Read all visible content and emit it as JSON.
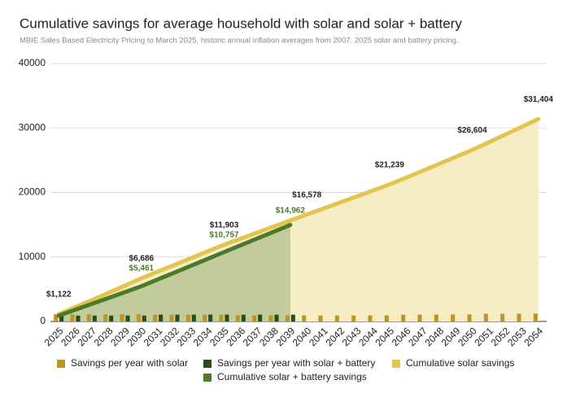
{
  "chart_data": {
    "type": "combo",
    "title": "Cumulative savings for average household with solar and solar + battery",
    "subtitle": "MBIE Sales Based Electricity Pricing to March 2025, historic annual inflation averages from 2007. 2025 solar and battery pricing.",
    "categories": [
      "2025",
      "2026",
      "2027",
      "2028",
      "2029",
      "2030",
      "2031",
      "2032",
      "2033",
      "2034",
      "2035",
      "2036",
      "2037",
      "2038",
      "2039",
      "2040",
      "2041",
      "2042",
      "2043",
      "2044",
      "2045",
      "2046",
      "2047",
      "2048",
      "2049",
      "2050",
      "2051",
      "2052",
      "2053",
      "2054"
    ],
    "ylim": [
      0,
      40000
    ],
    "yticks": [
      0,
      10000,
      20000,
      30000,
      40000
    ],
    "series": [
      {
        "name": "Savings per year with solar",
        "kind": "bar",
        "color": "#b8962b",
        "values": [
          1122,
          1090,
          1100,
          1112,
          1125,
          1137,
          1050,
          1045,
          1040,
          1040,
          1042,
          940,
          935,
          935,
          930,
          935,
          925,
          930,
          932,
          935,
          939,
          1050,
          1065,
          1073,
          1082,
          1095,
          1180,
          1195,
          1205,
          1220
        ]
      },
      {
        "name": "Savings per year with solar + battery",
        "kind": "bar",
        "color": "#2d4a1a",
        "values": [
          900,
          910,
          910,
          910,
          915,
          916,
          1055,
          1057,
          1059,
          1061,
          1064,
          1050,
          1051,
          1052,
          1052,
          null,
          null,
          null,
          null,
          null,
          null,
          null,
          null,
          null,
          null,
          null,
          null,
          null,
          null,
          null
        ]
      },
      {
        "name": "Cumulative solar savings",
        "kind": "area",
        "color": "#e3c44e",
        "fill": "#f6edc4",
        "values": [
          1122,
          2212,
          3312,
          4424,
          5549,
          6686,
          7736,
          8781,
          9821,
          10861,
          11903,
          12843,
          13778,
          14713,
          15643,
          16578,
          17503,
          18433,
          19365,
          20300,
          21239,
          22289,
          23354,
          24427,
          25509,
          26604,
          27784,
          28979,
          30184,
          31404
        ],
        "value_labels": [
          "$1,122",
          null,
          null,
          null,
          null,
          "$6,686",
          null,
          null,
          null,
          null,
          "$11,903",
          null,
          null,
          null,
          null,
          "$16,578",
          null,
          null,
          null,
          null,
          "$21,239",
          null,
          null,
          null,
          null,
          "$26,604",
          null,
          null,
          null,
          "$31,404"
        ]
      },
      {
        "name": "Cumulative solar + battery savings",
        "kind": "area",
        "color": "#4a7a28",
        "fill": "#c1cb9b",
        "values": [
          900,
          1810,
          2720,
          3630,
          4545,
          5461,
          6516,
          7573,
          8632,
          9693,
          10757,
          11807,
          12858,
          13910,
          14962,
          null,
          null,
          null,
          null,
          null,
          null,
          null,
          null,
          null,
          null,
          null,
          null,
          null,
          null,
          null
        ],
        "value_labels": [
          null,
          null,
          null,
          null,
          null,
          "$5,461",
          null,
          null,
          null,
          null,
          "$10,757",
          null,
          null,
          null,
          "$14,962",
          null,
          null,
          null,
          null,
          null,
          null,
          null,
          null,
          null,
          null,
          null,
          null,
          null,
          null,
          null
        ]
      }
    ]
  }
}
